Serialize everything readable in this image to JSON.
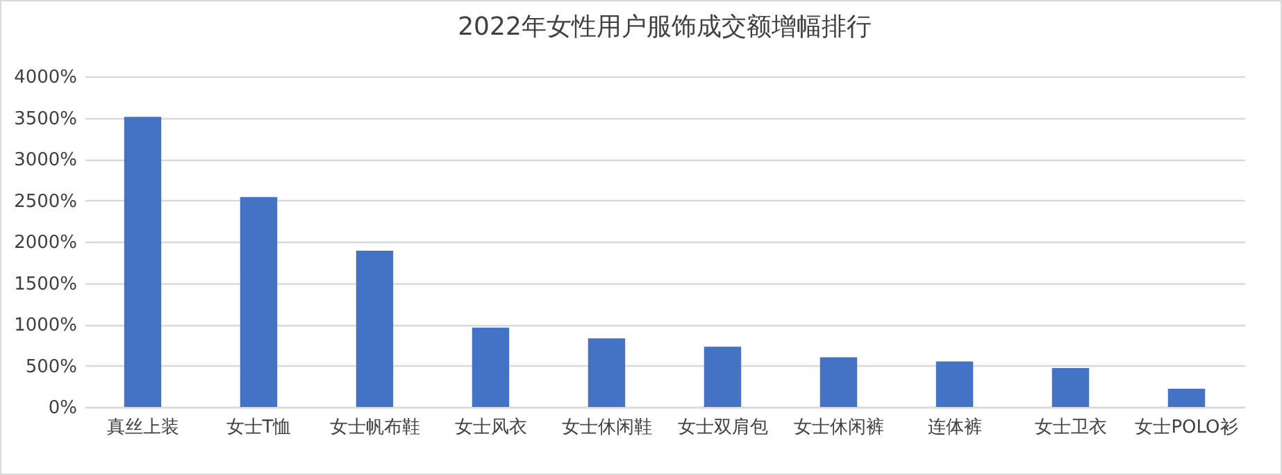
{
  "chart_data": {
    "type": "bar",
    "title": "2022年女性用户服饰成交额增幅排行",
    "categories": [
      "真丝上装",
      "女士T恤",
      "女士帆布鞋",
      "女士风衣",
      "女士休闲鞋",
      "女士双肩包",
      "女士休闲裤",
      "连体裤",
      "女士卫衣",
      "女士POLO衫"
    ],
    "values": [
      3510,
      2540,
      1890,
      960,
      830,
      730,
      600,
      550,
      470,
      220
    ],
    "color": "#4472c4",
    "ylim": [
      0,
      4000
    ],
    "yticks": [
      {
        "value": 0,
        "label": "0%"
      },
      {
        "value": 500,
        "label": "500%"
      },
      {
        "value": 1000,
        "label": "1000%"
      },
      {
        "value": 1500,
        "label": "1500%"
      },
      {
        "value": 2000,
        "label": "2000%"
      },
      {
        "value": 2500,
        "label": "2500%"
      },
      {
        "value": 3000,
        "label": "3000%"
      },
      {
        "value": 3500,
        "label": "3500%"
      },
      {
        "value": 4000,
        "label": "4000%"
      }
    ],
    "grid": true
  }
}
